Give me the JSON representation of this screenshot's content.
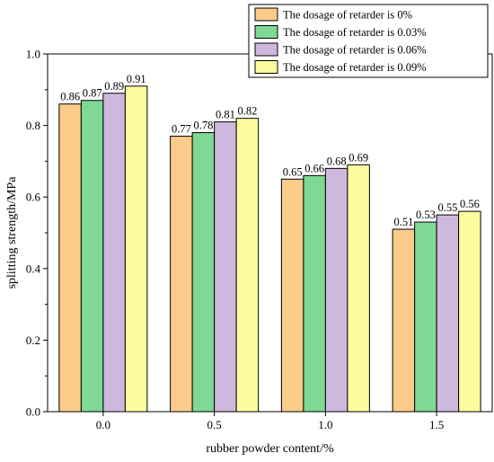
{
  "chart_data": {
    "type": "bar",
    "xlabel": "rubber powder content/%",
    "ylabel": "splitting strength/MPa",
    "categories": [
      "0.0",
      "0.5",
      "1.0",
      "1.5"
    ],
    "ylim": [
      0,
      1.0
    ],
    "yticks": [
      "0.0",
      "0.2",
      "0.4",
      "0.6",
      "0.8",
      "1.0"
    ],
    "legend_position": "top-right",
    "series": [
      {
        "name": "The dosage of retarder is 0%",
        "color": "#fccb8a",
        "values": [
          0.86,
          0.77,
          0.65,
          0.51
        ],
        "labels": [
          "0.86",
          "0.77",
          "0.65",
          "0.51"
        ]
      },
      {
        "name": "The dosage of retarder is 0.03%",
        "color": "#7fd893",
        "values": [
          0.87,
          0.78,
          0.66,
          0.53
        ],
        "labels": [
          "0.87",
          "0.78",
          "0.66",
          "0.53"
        ]
      },
      {
        "name": "The dosage of retarder is 0.06%",
        "color": "#cfb8de",
        "values": [
          0.89,
          0.81,
          0.68,
          0.55
        ],
        "labels": [
          "0.89",
          "0.81",
          "0.68",
          "0.55"
        ]
      },
      {
        "name": "The dosage of retarder is 0.09%",
        "color": "#fcfc9e",
        "values": [
          0.91,
          0.82,
          0.69,
          0.56
        ],
        "labels": [
          "0.91",
          "0.82",
          "0.69",
          "0.56"
        ]
      }
    ]
  }
}
